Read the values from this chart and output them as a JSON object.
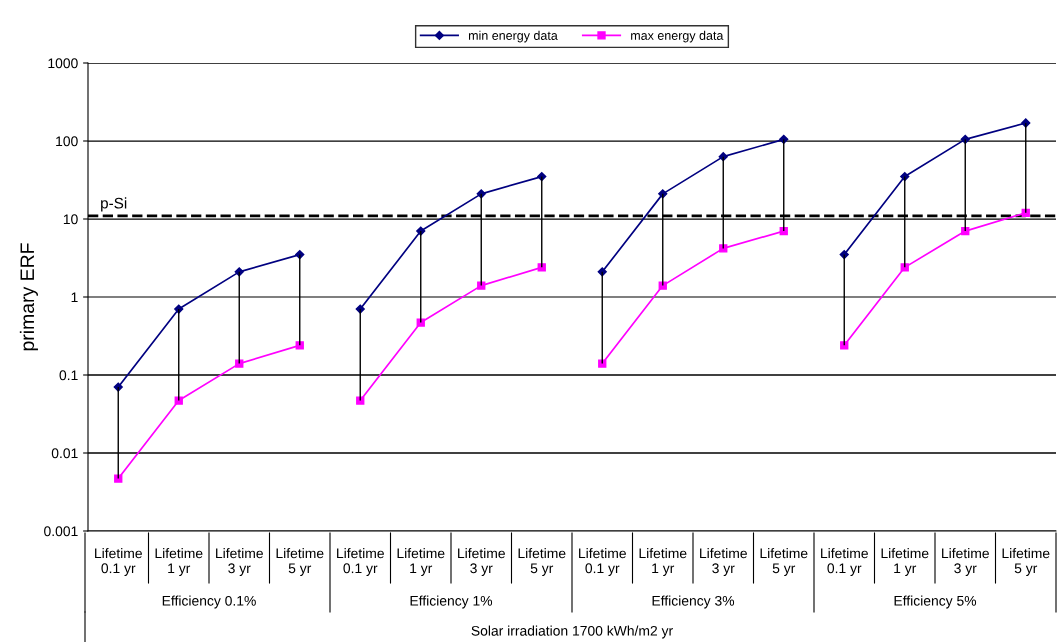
{
  "chart_data": {
    "type": "line",
    "ylabel": "primary ERF",
    "xlabel": "Solar irradiation 1700 kWh/m2 yr",
    "categories": [
      "Lifetime\n0.1 yr",
      "Lifetime\n1 yr",
      "Lifetime\n3 yr",
      "Lifetime\n5 yr",
      "Lifetime\n0.1 yr",
      "Lifetime\n1 yr",
      "Lifetime\n3 yr",
      "Lifetime\n5 yr",
      "Lifetime\n0.1 yr",
      "Lifetime\n1 yr",
      "Lifetime\n3 yr",
      "Lifetime\n5 yr",
      "Lifetime\n0.1 yr",
      "Lifetime\n1 yr",
      "Lifetime\n3 yr",
      "Lifetime\n5 yr"
    ],
    "annotations": [
      "Efficiency 0.1%",
      "Efficiency 1%",
      "Efficiency 3%",
      "Efficiency 5%"
    ],
    "series": [
      {
        "name": "min energy data",
        "color": "#000080",
        "marker": "diamond",
        "values": [
          0.07,
          0.7,
          2.1,
          3.5,
          0.7,
          7,
          21,
          35,
          2.1,
          21,
          63,
          105,
          3.5,
          35,
          105,
          170
        ],
        "errors": [
          [
            0.0047,
            0.07
          ],
          [
            0.047,
            0.7
          ],
          [
            0.14,
            2.1
          ],
          [
            0.24,
            3.5
          ],
          [
            0.047,
            0.7
          ],
          [
            0.47,
            7
          ],
          [
            1.4,
            21
          ],
          [
            2.4,
            35
          ],
          [
            0.14,
            2.1
          ],
          [
            1.4,
            21
          ],
          [
            4.2,
            63
          ],
          [
            7,
            105
          ],
          [
            0.24,
            3.5
          ],
          [
            2.4,
            35
          ],
          [
            7,
            105
          ],
          [
            12,
            170
          ]
        ]
      },
      {
        "name": "max energy data",
        "color": "#ff00ff",
        "marker": "square",
        "values": [
          0.0047,
          0.047,
          0.14,
          0.24,
          0.047,
          0.47,
          1.4,
          2.4,
          0.14,
          1.4,
          4.2,
          7,
          0.24,
          2.4,
          7,
          12
        ]
      }
    ],
    "log": "y",
    "ylim": [
      0.001,
      1000
    ],
    "yticks": [
      0.001,
      0.01,
      0.1,
      1,
      10,
      100,
      1000
    ],
    "ref_lines": [
      {
        "axis": "y",
        "value": 11,
        "label": "p-Si",
        "color": "#000000",
        "line_style": "dashed"
      }
    ],
    "grid": "y",
    "legend": "top"
  }
}
